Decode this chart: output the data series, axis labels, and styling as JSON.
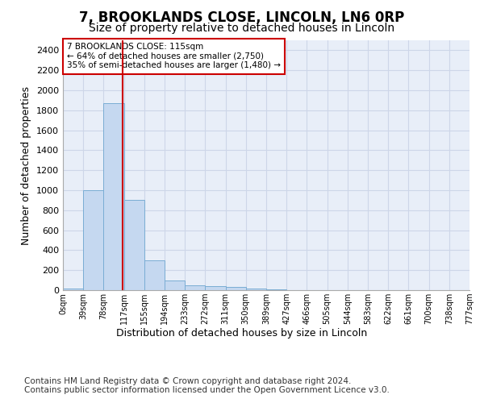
{
  "title": "7, BROOKLANDS CLOSE, LINCOLN, LN6 0RP",
  "subtitle": "Size of property relative to detached houses in Lincoln",
  "xlabel": "Distribution of detached houses by size in Lincoln",
  "ylabel": "Number of detached properties",
  "bar_values": [
    20,
    1000,
    1870,
    900,
    300,
    100,
    50,
    40,
    30,
    20,
    10,
    0,
    0,
    0,
    0,
    0,
    0,
    0,
    0,
    0
  ],
  "bar_labels": [
    "0sqm",
    "39sqm",
    "78sqm",
    "117sqm",
    "155sqm",
    "194sqm",
    "233sqm",
    "272sqm",
    "311sqm",
    "350sqm",
    "389sqm",
    "427sqm",
    "466sqm",
    "505sqm",
    "544sqm",
    "583sqm",
    "622sqm",
    "661sqm",
    "700sqm",
    "738sqm",
    "777sqm"
  ],
  "bar_color": "#c5d8f0",
  "bar_edge_color": "#7aadd4",
  "grid_color": "#cdd6e8",
  "plot_bg_color": "#e8eef8",
  "vline_color": "#cc0000",
  "annotation_text": "7 BROOKLANDS CLOSE: 115sqm\n← 64% of detached houses are smaller (2,750)\n35% of semi-detached houses are larger (1,480) →",
  "annotation_box_color": "#cc0000",
  "ylim": [
    0,
    2500
  ],
  "yticks": [
    0,
    200,
    400,
    600,
    800,
    1000,
    1200,
    1400,
    1600,
    1800,
    2000,
    2200,
    2400
  ],
  "title_fontsize": 12,
  "subtitle_fontsize": 10,
  "footer_text": "Contains HM Land Registry data © Crown copyright and database right 2024.\nContains public sector information licensed under the Open Government Licence v3.0.",
  "footer_fontsize": 7.5
}
